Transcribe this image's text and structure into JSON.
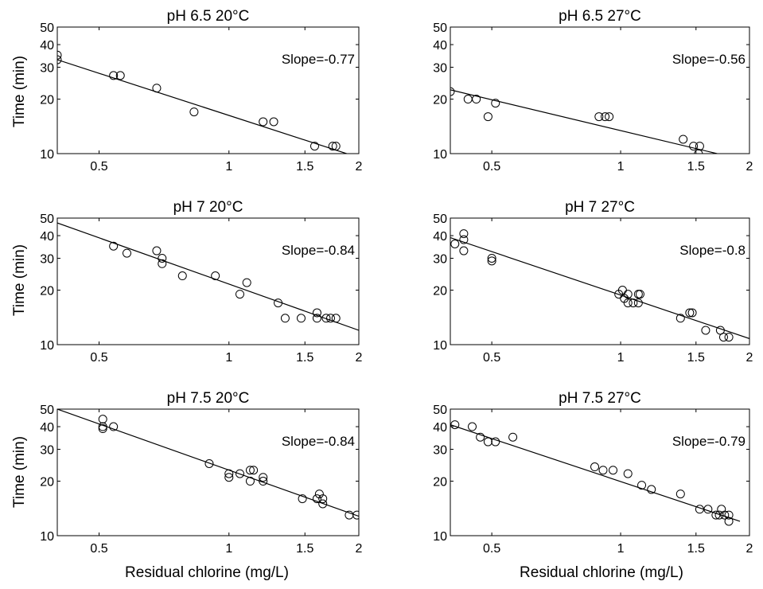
{
  "figure": {
    "xlabel": "Residual chlorine (mg/L)",
    "ylabel": "Time (min)"
  },
  "chart_data": [
    {
      "type": "scatter",
      "title": "pH 6.5 20°C",
      "annotation": "Slope=-0.77",
      "x_scale": "log",
      "y_scale": "log",
      "xlim": [
        0.4,
        2
      ],
      "ylim": [
        10,
        50
      ],
      "xticks": [
        "0.5",
        "1",
        "1.5",
        "2"
      ],
      "yticks": [
        "10",
        "20",
        "30",
        "40",
        "50"
      ],
      "fit": [
        [
          0.4,
          33
        ],
        [
          1.95,
          9.7
        ]
      ],
      "points": [
        [
          0.4,
          35
        ],
        [
          0.4,
          33
        ],
        [
          0.54,
          27
        ],
        [
          0.56,
          27
        ],
        [
          0.68,
          23
        ],
        [
          0.83,
          17
        ],
        [
          1.2,
          15
        ],
        [
          1.27,
          15
        ],
        [
          1.58,
          11
        ],
        [
          1.74,
          11
        ],
        [
          1.77,
          11
        ]
      ]
    },
    {
      "type": "scatter",
      "title": "pH 6.5 27°C",
      "annotation": "Slope=-0.56",
      "x_scale": "log",
      "y_scale": "log",
      "xlim": [
        0.4,
        2
      ],
      "ylim": [
        10,
        50
      ],
      "xticks": [
        "0.5",
        "1",
        "1.5",
        "2"
      ],
      "yticks": [
        "10",
        "20",
        "30",
        "40",
        "50"
      ],
      "fit": [
        [
          0.4,
          22.5
        ],
        [
          1.68,
          10
        ]
      ],
      "points": [
        [
          0.4,
          22
        ],
        [
          0.44,
          20
        ],
        [
          0.46,
          20
        ],
        [
          0.49,
          16
        ],
        [
          0.51,
          19
        ],
        [
          0.89,
          16
        ],
        [
          0.92,
          16
        ],
        [
          0.94,
          16
        ],
        [
          1.4,
          12
        ],
        [
          1.48,
          11
        ],
        [
          1.53,
          11
        ],
        [
          1.52,
          10
        ]
      ]
    },
    {
      "type": "scatter",
      "title": "pH 7 20°C",
      "annotation": "Slope=-0.84",
      "x_scale": "log",
      "y_scale": "log",
      "xlim": [
        0.4,
        2
      ],
      "ylim": [
        10,
        50
      ],
      "xticks": [
        "0.5",
        "1",
        "1.5",
        "2"
      ],
      "yticks": [
        "10",
        "20",
        "30",
        "40",
        "50"
      ],
      "fit": [
        [
          0.4,
          47
        ],
        [
          2.0,
          12
        ]
      ],
      "points": [
        [
          0.54,
          35
        ],
        [
          0.58,
          32
        ],
        [
          0.68,
          33
        ],
        [
          0.7,
          30
        ],
        [
          0.7,
          28
        ],
        [
          0.78,
          24
        ],
        [
          0.93,
          24
        ],
        [
          1.06,
          19
        ],
        [
          1.1,
          22
        ],
        [
          1.3,
          17
        ],
        [
          1.35,
          14
        ],
        [
          1.47,
          14
        ],
        [
          1.6,
          15
        ],
        [
          1.6,
          14
        ],
        [
          1.68,
          14
        ],
        [
          1.72,
          14
        ],
        [
          1.77,
          14
        ]
      ]
    },
    {
      "type": "scatter",
      "title": "pH 7 27°C",
      "annotation": "Slope=-0.8",
      "x_scale": "log",
      "y_scale": "log",
      "xlim": [
        0.4,
        2
      ],
      "ylim": [
        10,
        50
      ],
      "xticks": [
        "0.5",
        "1",
        "1.5",
        "2"
      ],
      "yticks": [
        "10",
        "20",
        "30",
        "40",
        "50"
      ],
      "fit": [
        [
          0.4,
          39
        ],
        [
          2.0,
          10.8
        ]
      ],
      "points": [
        [
          0.41,
          36
        ],
        [
          0.43,
          41
        ],
        [
          0.43,
          38
        ],
        [
          0.43,
          33
        ],
        [
          0.5,
          30
        ],
        [
          0.5,
          29
        ],
        [
          0.99,
          19
        ],
        [
          1.01,
          20
        ],
        [
          1.02,
          18
        ],
        [
          1.04,
          19
        ],
        [
          1.04,
          17
        ],
        [
          1.07,
          17
        ],
        [
          1.1,
          19
        ],
        [
          1.1,
          17
        ],
        [
          1.11,
          19
        ],
        [
          1.38,
          14
        ],
        [
          1.45,
          15
        ],
        [
          1.47,
          15
        ],
        [
          1.58,
          12
        ],
        [
          1.71,
          12
        ],
        [
          1.74,
          11
        ],
        [
          1.79,
          11
        ]
      ]
    },
    {
      "type": "scatter",
      "title": "pH 7.5 20°C",
      "annotation": "Slope=-0.84",
      "x_scale": "log",
      "y_scale": "log",
      "xlim": [
        0.4,
        2
      ],
      "ylim": [
        10,
        50
      ],
      "xticks": [
        "0.5",
        "1",
        "1.5",
        "2"
      ],
      "yticks": [
        "10",
        "20",
        "30",
        "40",
        "50"
      ],
      "fit": [
        [
          0.4,
          50
        ],
        [
          2.0,
          12.8
        ]
      ],
      "points": [
        [
          0.51,
          44
        ],
        [
          0.51,
          40
        ],
        [
          0.51,
          39
        ],
        [
          0.54,
          40
        ],
        [
          0.9,
          25
        ],
        [
          1.0,
          22
        ],
        [
          1.0,
          21
        ],
        [
          1.06,
          22
        ],
        [
          1.12,
          23
        ],
        [
          1.14,
          23
        ],
        [
          1.12,
          20
        ],
        [
          1.2,
          21
        ],
        [
          1.2,
          20
        ],
        [
          1.48,
          16
        ],
        [
          1.6,
          16
        ],
        [
          1.62,
          17
        ],
        [
          1.65,
          16
        ],
        [
          1.65,
          15
        ],
        [
          1.9,
          13
        ],
        [
          1.98,
          13
        ]
      ]
    },
    {
      "type": "scatter",
      "title": "pH 7.5 27°C",
      "annotation": "Slope=-0.79",
      "x_scale": "log",
      "y_scale": "log",
      "xlim": [
        0.4,
        2
      ],
      "ylim": [
        10,
        50
      ],
      "xticks": [
        "0.5",
        "1",
        "1.5",
        "2"
      ],
      "yticks": [
        "10",
        "20",
        "30",
        "40",
        "50"
      ],
      "fit": [
        [
          0.4,
          41
        ],
        [
          1.9,
          12
        ]
      ],
      "points": [
        [
          0.41,
          41
        ],
        [
          0.45,
          40
        ],
        [
          0.47,
          35
        ],
        [
          0.49,
          33
        ],
        [
          0.51,
          33
        ],
        [
          0.56,
          35
        ],
        [
          0.87,
          24
        ],
        [
          0.91,
          23
        ],
        [
          0.96,
          23
        ],
        [
          1.04,
          22
        ],
        [
          1.12,
          19
        ],
        [
          1.18,
          18
        ],
        [
          1.38,
          17
        ],
        [
          1.53,
          14
        ],
        [
          1.6,
          14
        ],
        [
          1.67,
          13
        ],
        [
          1.7,
          13
        ],
        [
          1.72,
          14
        ],
        [
          1.75,
          13
        ],
        [
          1.79,
          13
        ],
        [
          1.79,
          12
        ]
      ]
    }
  ]
}
